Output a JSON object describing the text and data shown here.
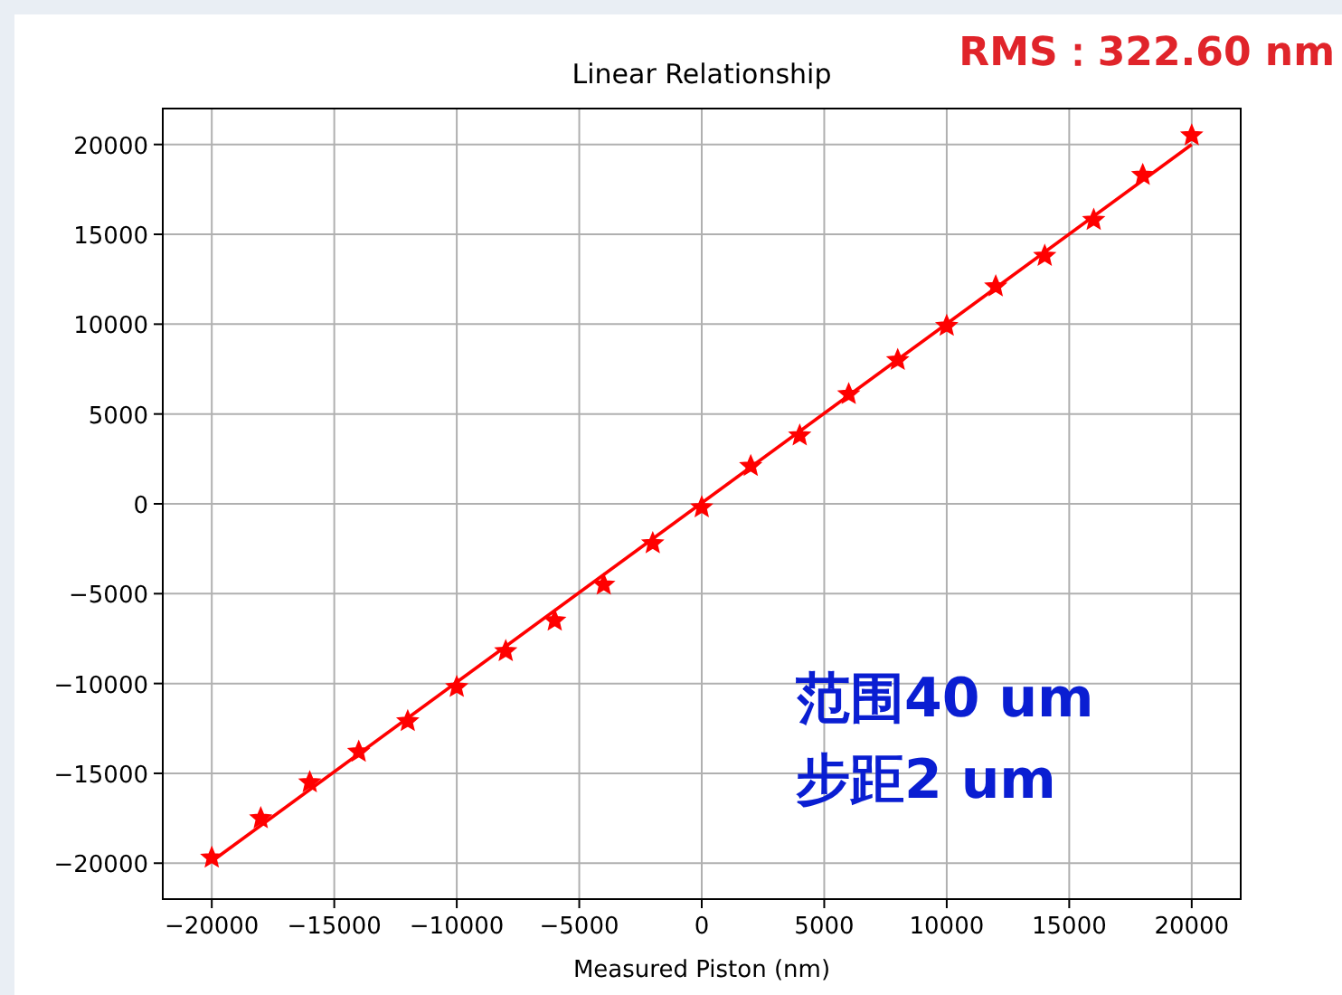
{
  "chart_data": {
    "type": "scatter",
    "title": "Linear Relationship",
    "xlabel": "Measured Piston (nm)",
    "annotations": [
      "RMS：322.60 nm",
      "范围40 um",
      "步距2 um"
    ],
    "xlim": [
      -22000,
      22000
    ],
    "ylim": [
      -22000,
      22000
    ],
    "xticks": [
      {
        "value": -20000,
        "label": "−20000"
      },
      {
        "value": -15000,
        "label": "−15000"
      },
      {
        "value": -10000,
        "label": "−10000"
      },
      {
        "value": -5000,
        "label": "−5000"
      },
      0,
      5000,
      10000,
      15000,
      20000
    ],
    "yticks": [
      {
        "value": -20000,
        "label": "−20000"
      },
      {
        "value": -15000,
        "label": "−15000"
      },
      {
        "value": -10000,
        "label": "−10000"
      },
      {
        "value": -5000,
        "label": "−5000"
      },
      0,
      5000,
      10000,
      15000,
      20000
    ],
    "grid": true,
    "series": [
      {
        "marker": "star",
        "color": "#ff0000",
        "x": [
          -20000,
          -18000,
          -16000,
          -14000,
          -12000,
          -10000,
          -8000,
          -6000,
          -4000,
          -2000,
          0,
          2000,
          4000,
          6000,
          8000,
          10000,
          12000,
          14000,
          16000,
          18000,
          20000
        ],
        "values": [
          -19700,
          -17500,
          -15500,
          -13800,
          -12100,
          -10200,
          -8200,
          -6500,
          -4500,
          -2200,
          -200,
          2100,
          3800,
          6100,
          8000,
          9900,
          12100,
          13800,
          15800,
          18300,
          20500
        ]
      },
      {
        "type": "line",
        "line_style": "solid",
        "color": "#ff0000",
        "x": [
          -20000,
          20000
        ],
        "values": [
          -19900,
          20000
        ]
      }
    ]
  }
}
